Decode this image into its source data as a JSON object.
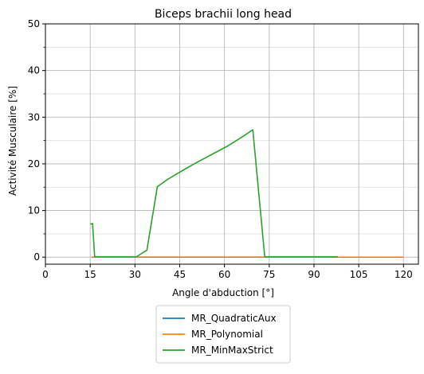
{
  "chart_data": {
    "type": "line",
    "title": "Biceps brachii long head",
    "xlabel": "Angle d'abduction [°]",
    "ylabel": "Activité Musculaire [%]",
    "xlim": [
      0,
      125
    ],
    "ylim": [
      -1.5,
      50
    ],
    "xticks": [
      0,
      15,
      30,
      45,
      60,
      75,
      90,
      105,
      120
    ],
    "yticks": [
      0,
      10,
      20,
      30,
      40,
      50
    ],
    "yminor_step": 5,
    "grid": true,
    "legend_placement": "below plot, centered",
    "series": [
      {
        "name": "MR_QuadraticAux",
        "color": "#1f77b4",
        "points": [
          [
            15.5,
            0.0
          ],
          [
            98,
            0.0
          ]
        ]
      },
      {
        "name": "MR_Polynomial",
        "color": "#ff7f0e",
        "points": [
          [
            15.5,
            0.0
          ],
          [
            120,
            0.0
          ]
        ]
      },
      {
        "name": "MR_MinMaxStrict",
        "color": "#2ca02c",
        "points": [
          [
            15.0,
            7.1
          ],
          [
            15.8,
            7.2
          ],
          [
            16.5,
            0.1
          ],
          [
            30.5,
            0.1
          ],
          [
            34.0,
            1.5
          ],
          [
            37.5,
            15.1
          ],
          [
            41.0,
            16.7
          ],
          [
            46.0,
            18.6
          ],
          [
            51.0,
            20.4
          ],
          [
            56.0,
            22.1
          ],
          [
            61.0,
            23.8
          ],
          [
            66.0,
            25.8
          ],
          [
            69.5,
            27.3
          ],
          [
            73.5,
            0.1
          ],
          [
            98.0,
            0.1
          ]
        ]
      }
    ]
  }
}
